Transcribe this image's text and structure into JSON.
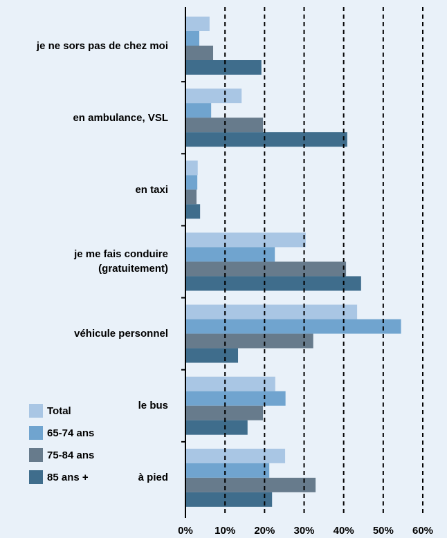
{
  "chart_data": {
    "type": "hbar",
    "categories": [
      "je ne sors pas de chez moi",
      "en ambulance, VSL",
      "en taxi",
      "je me fais conduire (gratuitement)",
      "véhicule personnel",
      "le bus",
      "à pied"
    ],
    "series": [
      {
        "name": "Total",
        "color": "#a9c6e4",
        "values": [
          6.1,
          14.2,
          3.1,
          30.4,
          43.4,
          22.7,
          25.2
        ]
      },
      {
        "name": "65-74 ans",
        "color": "#70a4cf",
        "values": [
          3.5,
          6.5,
          3.0,
          22.6,
          54.5,
          25.3,
          21.2
        ]
      },
      {
        "name": "75-84 ans",
        "color": "#677b8c",
        "values": [
          7.0,
          19.6,
          2.8,
          40.6,
          32.3,
          19.6,
          32.9
        ]
      },
      {
        "name": "85 ans +",
        "color": "#3f6d8c",
        "values": [
          19.2,
          40.9,
          3.7,
          44.4,
          13.3,
          15.7,
          21.9
        ]
      }
    ],
    "xlim": [
      0,
      60
    ],
    "xticks": [
      {
        "value": 0,
        "label": "0%"
      },
      {
        "value": 10,
        "label": "10%"
      },
      {
        "value": 20,
        "label": "20%"
      },
      {
        "value": 30,
        "label": "30%"
      },
      {
        "value": 40,
        "label": "40%"
      },
      {
        "value": 50,
        "label": "50%"
      },
      {
        "value": 60,
        "label": "60%"
      }
    ],
    "grid": true,
    "legend": "lower left"
  }
}
